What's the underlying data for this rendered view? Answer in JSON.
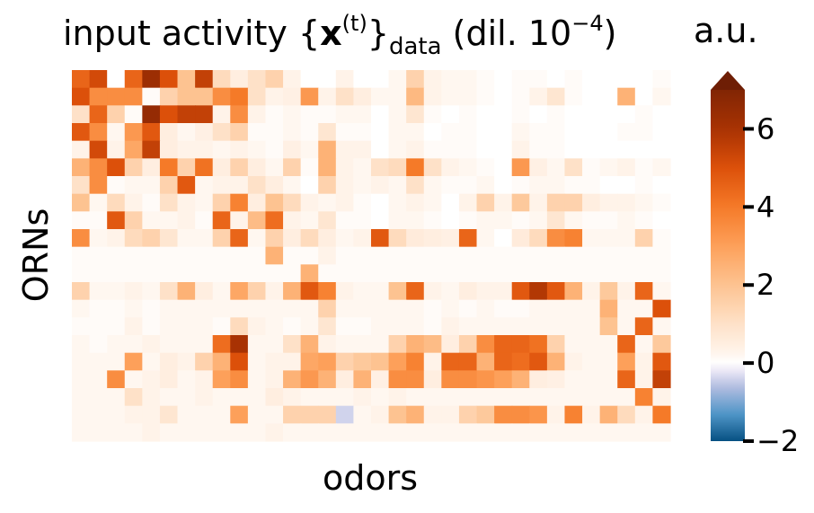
{
  "chart_data": {
    "type": "heatmap",
    "title_prefix": "input activity {",
    "title_bold": "x",
    "title_sup": "(t)",
    "title_mid": "}",
    "title_sub": "data",
    "title_suffix": " (dil. 10",
    "title_suffix_sup": "−4",
    "title_end": ")",
    "colorbar_label": "a.u.",
    "xlabel": "odors",
    "ylabel": "ORNs",
    "colorbar_ticks": [
      "6",
      "4",
      "2",
      "0",
      "−2"
    ],
    "colorbar_tick_values": [
      6,
      4,
      2,
      0,
      -2
    ],
    "vmin": -2,
    "vmax": 7.5,
    "n_rows": 21,
    "n_cols": 34,
    "values": [
      [
        4.5,
        5.2,
        0,
        4.5,
        6.3,
        5,
        2,
        5.5,
        1.2,
        0.5,
        1,
        1.5,
        0.3,
        0,
        0,
        0.3,
        0,
        0,
        0.2,
        1.5,
        0.3,
        0.2,
        0.2,
        0.1,
        0,
        0.1,
        0.1,
        0,
        0.1,
        0,
        0,
        0,
        0,
        0.1
      ],
      [
        5,
        3.5,
        3.5,
        3.5,
        0.1,
        1.5,
        2,
        2,
        3.5,
        4,
        1,
        0.3,
        0.4,
        3.2,
        0.3,
        1,
        0.5,
        0.2,
        0.2,
        2.3,
        0.3,
        0.2,
        0.2,
        0.1,
        0,
        0.1,
        0.3,
        0.8,
        0.1,
        0,
        0,
        2.5,
        0,
        0.2
      ],
      [
        1,
        4.5,
        1.5,
        0.1,
        6.5,
        5,
        5.5,
        5.5,
        0.3,
        3.5,
        0.3,
        0.1,
        0.2,
        0.1,
        0.1,
        0.2,
        0.2,
        0,
        0.2,
        0.8,
        0.1,
        0,
        0.1,
        0,
        0,
        0.1,
        0,
        0.1,
        0,
        0,
        0,
        0,
        0.1,
        0
      ],
      [
        4.8,
        3.5,
        0.2,
        3.2,
        4.8,
        0.5,
        0.2,
        0.4,
        1,
        1.5,
        0.1,
        0.1,
        0.2,
        0.1,
        0.8,
        0.1,
        0.1,
        0,
        0.2,
        0.2,
        0,
        0.1,
        0.1,
        0,
        0,
        0.2,
        0.1,
        0.1,
        0,
        0,
        0,
        0.1,
        0.1,
        0
      ],
      [
        0.3,
        5.2,
        0.3,
        2.8,
        5.5,
        0.5,
        0.3,
        0.3,
        0.2,
        0.3,
        0.2,
        0.1,
        0.4,
        0.2,
        2.5,
        0.3,
        0.3,
        0,
        0.2,
        0.3,
        0.1,
        0.1,
        0.1,
        0,
        0,
        0.3,
        0.1,
        0.1,
        0,
        0,
        0,
        0,
        0,
        0
      ],
      [
        2.5,
        3.5,
        5,
        1.5,
        0.5,
        4,
        1.5,
        4.2,
        0.5,
        1.5,
        0.5,
        0.2,
        1.5,
        0.1,
        2.5,
        0.3,
        0.2,
        1,
        1.2,
        4,
        1,
        0.3,
        0.2,
        0.1,
        0,
        3.2,
        0.4,
        0.2,
        1,
        0.1,
        0.2,
        0.3,
        0.1,
        0.2
      ],
      [
        1,
        3.5,
        0.1,
        0.2,
        0.2,
        1.5,
        4.8,
        0.2,
        0.3,
        0.3,
        1,
        0.5,
        0.2,
        0,
        1.5,
        0.3,
        0.2,
        0.3,
        0.2,
        1,
        0.2,
        0.1,
        0.1,
        0.2,
        0,
        0.1,
        0.2,
        0.2,
        0.1,
        0.1,
        0,
        0,
        0.1,
        0
      ],
      [
        2,
        0.2,
        1.2,
        0.3,
        0.1,
        1,
        0.3,
        0.2,
        1.5,
        3.8,
        0.5,
        2,
        1.2,
        0.3,
        0.2,
        0.3,
        0.1,
        0,
        0.2,
        0.3,
        0.2,
        0,
        0.3,
        1.5,
        0.3,
        1.8,
        0.3,
        1.5,
        1.5,
        0.5,
        0.3,
        0.3,
        0.2,
        0.1
      ],
      [
        0.1,
        0.1,
        4.8,
        1.5,
        0.2,
        0.2,
        0.3,
        0.1,
        4.5,
        0.3,
        2.2,
        4.3,
        0.3,
        0.2,
        0.8,
        0.1,
        0.1,
        0,
        0.2,
        0.2,
        0.1,
        0,
        0.1,
        0.2,
        0.2,
        0.1,
        0.2,
        0.8,
        0.2,
        0.1,
        0.1,
        0.2,
        0.1,
        0
      ],
      [
        3.5,
        0.2,
        0.3,
        1.2,
        1.5,
        0.8,
        0.2,
        0.2,
        1.5,
        4.5,
        0.2,
        1.5,
        0.5,
        1.2,
        0.5,
        0.2,
        0.3,
        4.8,
        1.2,
        0.6,
        0.5,
        0.4,
        4.5,
        0.2,
        0,
        0.6,
        1.2,
        3.5,
        3.8,
        0.2,
        0.2,
        0.2,
        1.5,
        0.1
      ],
      [
        0.1,
        0.1,
        0.1,
        0.1,
        0.1,
        0.1,
        0.1,
        0.1,
        0.1,
        0.1,
        0.1,
        2.5,
        0.1,
        0.1,
        0.3,
        0.1,
        0.1,
        0.1,
        0.1,
        0.1,
        0.1,
        0.1,
        0.1,
        0.1,
        0.1,
        0.1,
        0.1,
        0.1,
        0.1,
        0.1,
        0.1,
        0.1,
        0.1,
        0.1
      ],
      [
        0.1,
        0.1,
        0.1,
        0.1,
        0.1,
        0.1,
        0.1,
        0.1,
        0.1,
        0.1,
        0.1,
        0.1,
        0.1,
        2.5,
        0.1,
        0.1,
        0.1,
        0.1,
        0.1,
        0.1,
        0.1,
        0.1,
        0.1,
        0.1,
        0.1,
        0.1,
        0.1,
        0.1,
        0.1,
        0.1,
        0.1,
        0.1,
        0.1,
        0.1
      ],
      [
        1.5,
        0.2,
        0.2,
        0.3,
        0.2,
        1,
        2.5,
        0.5,
        0.2,
        2.8,
        1.5,
        0.3,
        2.5,
        4.8,
        3.8,
        0.3,
        0.2,
        0.2,
        2,
        4.5,
        0.3,
        0.2,
        0.5,
        0.3,
        0.3,
        4.8,
        5.8,
        4.8,
        2.5,
        0.3,
        1.8,
        0.3,
        4.5,
        0.2
      ],
      [
        0.2,
        0.1,
        0.1,
        0.2,
        0.1,
        0.2,
        0.2,
        0.2,
        0.2,
        0.2,
        0.2,
        0.2,
        0.2,
        0.2,
        1.5,
        0.2,
        0.2,
        0.2,
        0.2,
        0.2,
        0.1,
        0.2,
        0.1,
        0.2,
        0.1,
        0.1,
        0.2,
        0.2,
        0.2,
        0.2,
        2.5,
        0.2,
        0.2,
        5
      ],
      [
        0.1,
        0.1,
        0.1,
        0.3,
        0.1,
        0.2,
        0.2,
        0.2,
        0.1,
        1.2,
        0.3,
        0.2,
        0.1,
        0.2,
        0.8,
        0.1,
        0.1,
        0.2,
        0.2,
        0.2,
        0.1,
        0.3,
        0.2,
        0.2,
        0.2,
        0.2,
        0.2,
        0.2,
        0.2,
        0.2,
        2,
        0.2,
        4.5,
        0.2
      ],
      [
        0.2,
        0.1,
        0.2,
        0.2,
        0.3,
        0.2,
        0.2,
        0.2,
        4.3,
        6,
        0.2,
        0.2,
        1,
        2.5,
        0.3,
        0.2,
        0.2,
        0.2,
        1.5,
        2.5,
        2.2,
        0.5,
        1.5,
        3.5,
        4.5,
        4.5,
        4.2,
        1.5,
        0.2,
        0.2,
        0.2,
        4.5,
        0.2,
        1.8
      ],
      [
        0.2,
        0.2,
        0.2,
        3,
        0.2,
        0.5,
        0.3,
        1.5,
        2.5,
        5,
        0.2,
        0.3,
        0.3,
        2.8,
        3,
        1.5,
        1.8,
        2,
        3,
        3.8,
        0.3,
        4.5,
        4.5,
        2.5,
        4.5,
        4.3,
        4.8,
        2.5,
        0.3,
        0.2,
        0.2,
        3,
        0.3,
        4.8
      ],
      [
        0.2,
        0.2,
        3.5,
        0.2,
        0.3,
        0.5,
        0.2,
        0.3,
        3,
        3.5,
        0.2,
        0.3,
        2.5,
        3.2,
        2.5,
        0.5,
        2.5,
        0.4,
        3.5,
        3.5,
        0.5,
        3.5,
        3.5,
        3.3,
        3,
        2.5,
        0.5,
        0.4,
        0.2,
        0.2,
        0.2,
        4.5,
        0.3,
        5.5
      ],
      [
        0.2,
        0.2,
        0.2,
        1,
        0.3,
        0.2,
        0.2,
        0.3,
        0.2,
        0.2,
        0.2,
        0.5,
        0.3,
        0.2,
        0.2,
        0.2,
        0.3,
        0.2,
        0.3,
        0.2,
        0.2,
        0.2,
        0.2,
        0.2,
        0.2,
        0.2,
        0.2,
        0.2,
        0.2,
        0.2,
        0.2,
        0.2,
        3.8,
        0.3
      ],
      [
        0.2,
        0.2,
        0.2,
        0.3,
        0.3,
        0.8,
        0.2,
        0.2,
        0.2,
        3,
        0.2,
        0.2,
        1.5,
        1.5,
        1.5,
        -0.4,
        0.2,
        0.3,
        2,
        2.5,
        0.3,
        0.3,
        1.5,
        1.8,
        3.5,
        3.5,
        3.3,
        0.3,
        3.8,
        0.3,
        2.5,
        1.2,
        0.3,
        4
      ],
      [
        0.2,
        0.2,
        0.2,
        0.2,
        0.3,
        0.2,
        0.2,
        0.2,
        0.2,
        0.2,
        0.2,
        0.3,
        0.2,
        0.2,
        0.2,
        0.2,
        0.2,
        0.2,
        0.2,
        0.2,
        0.2,
        0.2,
        0.2,
        0.2,
        0.2,
        0.2,
        0.2,
        0.2,
        0.2,
        0.2,
        0.2,
        0.2,
        0.2,
        0.2
      ]
    ]
  }
}
